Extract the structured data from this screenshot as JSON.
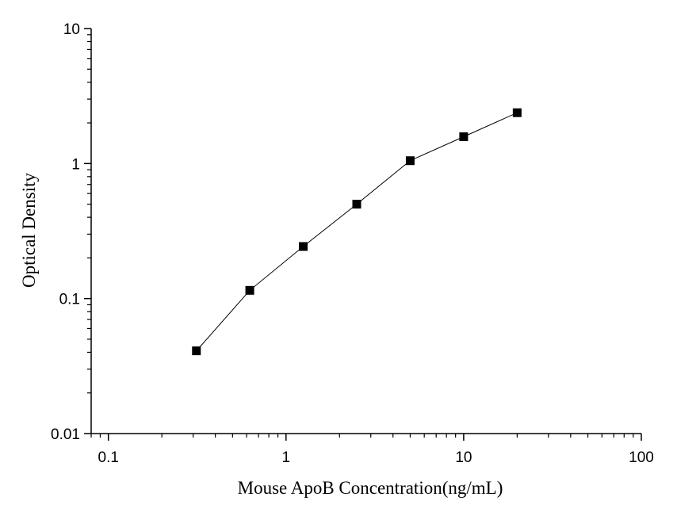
{
  "chart_data": {
    "type": "line",
    "title": "",
    "xlabel": "Mouse ApoB  Concentration(ng/mL)",
    "ylabel": "Optical Density",
    "x_scale": "log",
    "y_scale": "log",
    "xlim": [
      0.08,
      100
    ],
    "ylim": [
      0.01,
      10
    ],
    "x_ticks": [
      {
        "value": 0.1,
        "label": "0.1"
      },
      {
        "value": 1,
        "label": "1"
      },
      {
        "value": 10,
        "label": "10"
      },
      {
        "value": 100,
        "label": "100"
      }
    ],
    "y_ticks": [
      {
        "value": 0.01,
        "label": "0.01"
      },
      {
        "value": 0.1,
        "label": "0.1"
      },
      {
        "value": 1,
        "label": "1"
      },
      {
        "value": 10,
        "label": "10"
      }
    ],
    "grid": false,
    "series": [
      {
        "x": [
          0.313,
          0.625,
          1.25,
          2.5,
          5,
          10,
          20
        ],
        "y": [
          0.041,
          0.115,
          0.243,
          0.5,
          1.05,
          1.58,
          2.38
        ],
        "marker": "square",
        "color": "#000000"
      }
    ]
  }
}
